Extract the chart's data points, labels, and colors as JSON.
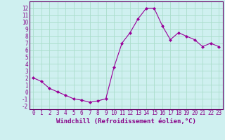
{
  "hours": [
    0,
    1,
    2,
    3,
    4,
    5,
    6,
    7,
    8,
    9,
    10,
    11,
    12,
    13,
    14,
    15,
    16,
    17,
    18,
    19,
    20,
    21,
    22,
    23
  ],
  "values": [
    2.0,
    1.5,
    0.5,
    0.0,
    -0.5,
    -1.0,
    -1.2,
    -1.5,
    -1.3,
    -1.0,
    3.5,
    7.0,
    8.5,
    10.5,
    12.0,
    12.0,
    9.5,
    7.5,
    8.5,
    8.0,
    7.5,
    6.5,
    7.0,
    6.5
  ],
  "line_color": "#990099",
  "marker": "D",
  "marker_size": 2.0,
  "bg_color": "#cff0f0",
  "grid_color": "#aaddcc",
  "xlabel": "Windchill (Refroidissement éolien,°C)",
  "yticks": [
    -2,
    -1,
    0,
    1,
    2,
    3,
    4,
    5,
    6,
    7,
    8,
    9,
    10,
    11,
    12
  ],
  "ylim": [
    -2.5,
    13.0
  ],
  "xlim": [
    -0.5,
    23.5
  ],
  "tick_fontsize": 5.5,
  "xlabel_fontsize": 6.5,
  "axis_color": "#880088",
  "spine_color": "#660066"
}
